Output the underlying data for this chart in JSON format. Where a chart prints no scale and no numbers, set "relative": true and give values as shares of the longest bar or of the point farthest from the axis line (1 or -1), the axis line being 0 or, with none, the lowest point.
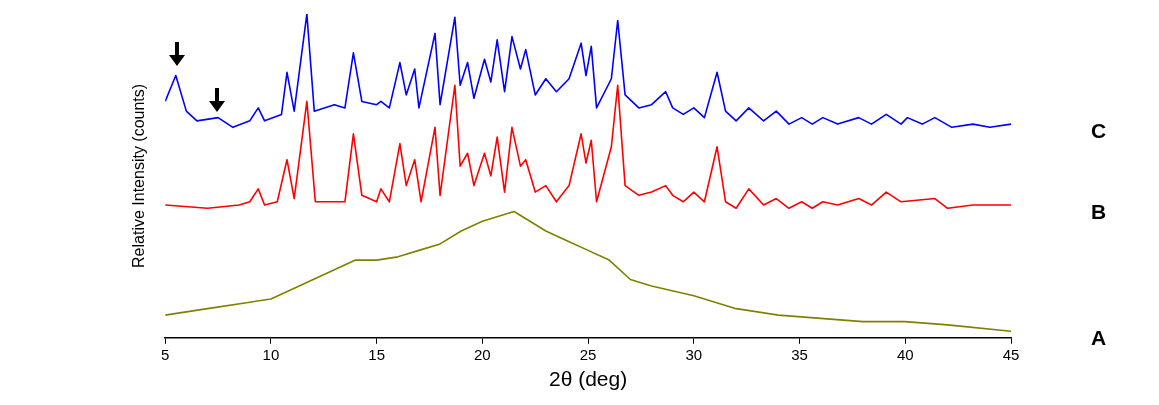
{
  "chart_data": {
    "type": "line",
    "xlabel": "2θ (deg)",
    "ylabel": "Relative Intensity (counts)",
    "relative": true,
    "marker": "none",
    "xlim": [
      5,
      45
    ],
    "xticks": [
      5,
      10,
      15,
      20,
      25,
      30,
      35,
      40,
      45
    ],
    "series": [
      {
        "name": "C",
        "color": "#0000ff",
        "x": [
          5.0,
          5.5,
          6.0,
          6.5,
          7.5,
          8.2,
          9.0,
          9.4,
          9.7,
          10.5,
          10.76,
          11.1,
          11.7,
          12.05,
          13.0,
          13.5,
          13.9,
          14.3,
          15.0,
          15.2,
          15.6,
          16.1,
          16.4,
          16.8,
          17.0,
          17.76,
          18.0,
          18.7,
          18.95,
          19.3,
          19.6,
          20.1,
          20.4,
          20.7,
          21.05,
          21.4,
          21.8,
          22.05,
          22.5,
          23.0,
          23.5,
          24.1,
          24.67,
          24.9,
          25.15,
          25.4,
          26.1,
          26.4,
          26.75,
          27.4,
          28.0,
          28.67,
          29.0,
          29.5,
          30.0,
          30.5,
          31.1,
          31.5,
          32.0,
          32.6,
          33.3,
          33.9,
          34.5,
          35.1,
          35.6,
          36.1,
          36.8,
          37.8,
          38.4,
          39.1,
          39.8,
          40.1,
          40.8,
          41.4,
          42.2,
          43.2,
          44.0,
          45.0
        ],
        "values": [
          0.73,
          0.81,
          0.7,
          0.67,
          0.68,
          0.65,
          0.67,
          0.71,
          0.67,
          0.69,
          0.82,
          0.7,
          1.0,
          0.7,
          0.72,
          0.71,
          0.88,
          0.73,
          0.72,
          0.73,
          0.71,
          0.85,
          0.75,
          0.83,
          0.71,
          0.94,
          0.72,
          0.99,
          0.78,
          0.85,
          0.74,
          0.86,
          0.79,
          0.92,
          0.76,
          0.93,
          0.83,
          0.89,
          0.75,
          0.8,
          0.76,
          0.8,
          0.91,
          0.81,
          0.9,
          0.71,
          0.8,
          0.98,
          0.75,
          0.71,
          0.72,
          0.76,
          0.71,
          0.69,
          0.71,
          0.68,
          0.82,
          0.7,
          0.67,
          0.71,
          0.67,
          0.7,
          0.66,
          0.68,
          0.66,
          0.68,
          0.66,
          0.68,
          0.66,
          0.69,
          0.66,
          0.68,
          0.66,
          0.68,
          0.65,
          0.66,
          0.65,
          0.66
        ]
      },
      {
        "name": "B",
        "color": "#ff0000",
        "x": [
          5.0,
          7.0,
          8.5,
          9.0,
          9.4,
          9.7,
          10.3,
          10.76,
          11.1,
          11.7,
          12.1,
          13.0,
          13.5,
          13.9,
          14.3,
          15.0,
          15.2,
          15.6,
          16.1,
          16.4,
          16.8,
          17.1,
          17.76,
          18.0,
          18.7,
          18.95,
          19.3,
          19.6,
          20.1,
          20.4,
          20.7,
          21.05,
          21.4,
          21.8,
          22.05,
          22.5,
          23.0,
          23.5,
          24.1,
          24.67,
          24.9,
          25.15,
          25.4,
          26.1,
          26.4,
          26.75,
          27.4,
          28.0,
          28.67,
          29.0,
          29.5,
          30.0,
          30.5,
          31.1,
          31.5,
          32.0,
          32.6,
          33.3,
          33.9,
          34.5,
          35.1,
          35.6,
          36.1,
          36.8,
          37.8,
          38.4,
          39.1,
          39.8,
          41.4,
          42.0,
          43.2,
          44.0,
          45.0
        ],
        "values": [
          0.41,
          0.4,
          0.41,
          0.42,
          0.46,
          0.41,
          0.42,
          0.55,
          0.43,
          0.73,
          0.42,
          0.42,
          0.42,
          0.63,
          0.44,
          0.42,
          0.46,
          0.42,
          0.6,
          0.47,
          0.55,
          0.42,
          0.65,
          0.44,
          0.78,
          0.53,
          0.57,
          0.47,
          0.57,
          0.5,
          0.62,
          0.45,
          0.65,
          0.53,
          0.55,
          0.45,
          0.47,
          0.42,
          0.47,
          0.63,
          0.54,
          0.61,
          0.42,
          0.59,
          0.78,
          0.47,
          0.44,
          0.45,
          0.47,
          0.44,
          0.42,
          0.45,
          0.42,
          0.59,
          0.42,
          0.4,
          0.46,
          0.41,
          0.43,
          0.4,
          0.42,
          0.4,
          0.42,
          0.41,
          0.43,
          0.41,
          0.45,
          0.42,
          0.43,
          0.4,
          0.41,
          0.41,
          0.41
        ]
      },
      {
        "name": "A",
        "color": "#808000",
        "x": [
          5,
          7,
          9,
          10,
          11,
          12,
          13,
          14,
          15,
          16,
          17,
          18,
          19,
          20,
          21,
          21.5,
          22,
          23,
          24,
          25,
          26,
          27,
          28,
          30,
          32,
          34,
          36,
          38,
          40,
          42,
          45
        ],
        "values": [
          0.07,
          0.09,
          0.11,
          0.12,
          0.15,
          0.18,
          0.21,
          0.24,
          0.24,
          0.25,
          0.27,
          0.29,
          0.33,
          0.36,
          0.38,
          0.39,
          0.37,
          0.33,
          0.3,
          0.27,
          0.24,
          0.18,
          0.16,
          0.13,
          0.09,
          0.07,
          0.06,
          0.05,
          0.05,
          0.04,
          0.02
        ]
      }
    ]
  }
}
